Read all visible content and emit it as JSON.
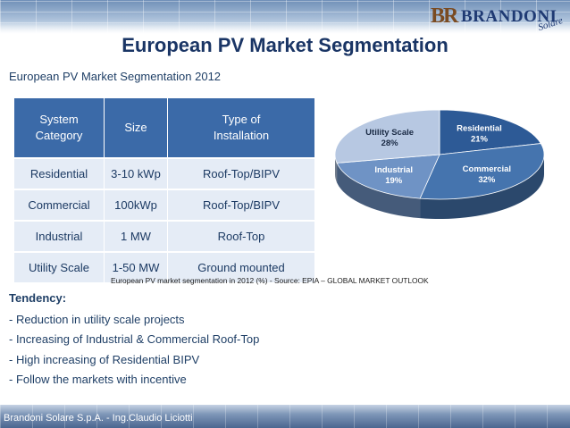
{
  "header": {
    "logo_mark": "BR",
    "logo_brand": "BRANDONI",
    "logo_sub": "Solare"
  },
  "title": "European PV Market Segmentation",
  "subtitle": "European PV Market Segmentation 2012",
  "table": {
    "headers": [
      "System Category",
      "Size",
      "Type of Installation"
    ],
    "header_lines": [
      [
        "System",
        "Category"
      ],
      [
        "Size"
      ],
      [
        "Type of",
        "Installation"
      ]
    ],
    "rows": [
      [
        "Residential",
        "3-10 kWp",
        "Roof-Top/BIPV"
      ],
      [
        "Commercial",
        "100kWp",
        "Roof-Top/BIPV"
      ],
      [
        "Industrial",
        "1 MW",
        "Roof-Top"
      ],
      [
        "Utility Scale",
        "1-50 MW",
        "Ground mounted"
      ]
    ]
  },
  "chart_data": {
    "type": "pie",
    "title": "",
    "categories": [
      "Residential",
      "Commercial",
      "Industrial",
      "Utility Scale"
    ],
    "values": [
      21,
      32,
      19,
      28
    ],
    "labels": [
      "21%",
      "32%",
      "19%",
      "28%"
    ],
    "colors": [
      "#2d5a96",
      "#4574ae",
      "#6f93c5",
      "#b7c8e2"
    ],
    "style": "3d"
  },
  "caption": "European PV market segmentation in 2012 (%) - Source: EPIA – GLOBAL MARKET OUTLOOK",
  "tendency": {
    "heading": "Tendency:",
    "items": [
      "- Reduction in utility scale projects",
      "- Increasing of Industrial & Commercial Roof-Top",
      "- High increasing of Residential BIPV",
      "- Follow the markets with incentive"
    ]
  },
  "footer": "Brandoni Solare S.p.A. - Ing.Claudio Liciotti"
}
